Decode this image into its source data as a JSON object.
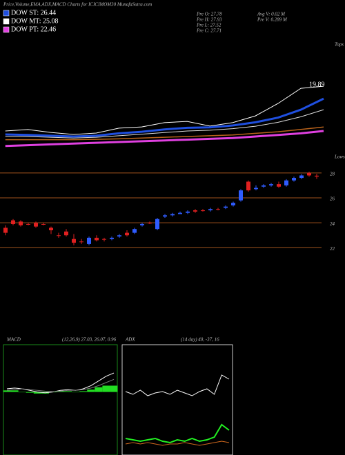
{
  "header": {
    "title": "Price,Volume,EMA,ADX,MACD Charts for ICICIMOM30 MunafaSutra.com",
    "legend": [
      {
        "label": "DOW ST: 26.44",
        "color": "#1f4fe0"
      },
      {
        "label": "DOW MT: 25.08",
        "color": "#ffffff"
      },
      {
        "label": "DOW PT: 22.46",
        "color": "#e040e0"
      }
    ],
    "stats": [
      "Pre  O: 27.78",
      "Pre  H: 27.93",
      "Pre  L: 27.52",
      "Pre  C: 27.71",
      "Avg V: 0.02  M",
      "Pre  V: 0.289 M"
    ]
  },
  "chart_data": [
    {
      "type": "line",
      "annotations": [
        "Tops",
        "Lows",
        "19.89"
      ],
      "x": [
        0,
        3,
        6,
        9,
        12,
        15,
        18,
        21,
        24,
        27,
        30,
        33,
        36,
        39,
        42
      ],
      "xlim": [
        -0.7,
        43
      ],
      "ylim": [
        23,
        30
      ],
      "series": [
        {
          "color": "#ffffff",
          "width": 1,
          "values": [
            24.75,
            24.84,
            24.66,
            24.53,
            24.62,
            24.93,
            25.01,
            25.28,
            25.36,
            25.06,
            25.28,
            25.71,
            26.5,
            27.46,
            27.59
          ]
        },
        {
          "color": "#1f4fe0",
          "width": 3,
          "values": [
            24.53,
            24.5,
            24.45,
            24.4,
            24.45,
            24.6,
            24.7,
            24.85,
            24.95,
            24.98,
            25.1,
            25.3,
            25.6,
            26.1,
            26.8
          ]
        },
        {
          "color": "#dddddd",
          "width": 1,
          "values": [
            24.4,
            24.4,
            24.35,
            24.3,
            24.35,
            24.45,
            24.55,
            24.65,
            24.75,
            24.8,
            24.9,
            25.05,
            25.3,
            25.65,
            26.1
          ]
        },
        {
          "color": "#b8621b",
          "width": 1.5,
          "values": [
            24.2,
            24.2,
            24.2,
            24.2,
            24.22,
            24.25,
            24.3,
            24.35,
            24.4,
            24.45,
            24.5,
            24.6,
            24.7,
            24.85,
            25.0
          ]
        },
        {
          "color": "#e040e0",
          "width": 3,
          "values": [
            23.8,
            23.85,
            23.9,
            23.95,
            24.0,
            24.05,
            24.1,
            24.15,
            24.2,
            24.25,
            24.3,
            24.4,
            24.5,
            24.6,
            24.75
          ]
        }
      ]
    },
    {
      "type": "candlestick",
      "ylim": [
        21.3,
        28.6
      ],
      "yticks": [
        22,
        24,
        26,
        28
      ],
      "grid": true,
      "grid_color": "#a0521d",
      "up_color": "#2f5cff",
      "down_color": "#e02020",
      "open": [
        23.6,
        24.2,
        24.1,
        23.9,
        24.0,
        23.9,
        23.6,
        23.0,
        23.3,
        22.7,
        22.5,
        22.3,
        22.8,
        22.7,
        22.7,
        22.9,
        23.2,
        23.2,
        23.8,
        24.0,
        23.5,
        24.5,
        24.6,
        24.7,
        24.8,
        25.0,
        25.0,
        25.0,
        25.1,
        25.2,
        25.4,
        25.8,
        27.3,
        26.7,
        26.9,
        27.0,
        27.1,
        27.0,
        27.4,
        27.6,
        28.0,
        27.78
      ],
      "high": [
        23.8,
        24.3,
        24.2,
        24.0,
        24.1,
        24.0,
        23.7,
        23.2,
        23.5,
        23.1,
        22.7,
        22.9,
        23.0,
        22.8,
        22.9,
        23.1,
        23.4,
        23.6,
        24.0,
        24.1,
        24.4,
        24.7,
        24.8,
        24.9,
        25.0,
        25.1,
        25.1,
        25.2,
        25.2,
        25.4,
        25.7,
        26.7,
        27.4,
        27.0,
        27.1,
        27.2,
        27.3,
        27.5,
        27.7,
        27.9,
        28.1,
        27.93
      ],
      "low": [
        23.0,
        23.8,
        23.7,
        23.8,
        23.6,
        23.8,
        23.1,
        22.8,
        22.9,
        22.2,
        22.3,
        22.2,
        22.5,
        22.5,
        22.6,
        22.8,
        22.9,
        23.1,
        23.7,
        23.9,
        23.4,
        24.4,
        24.5,
        24.7,
        24.7,
        24.8,
        24.9,
        24.9,
        25.0,
        25.1,
        25.3,
        25.7,
        26.5,
        26.6,
        26.8,
        26.9,
        26.8,
        26.9,
        27.3,
        27.5,
        27.7,
        27.52
      ],
      "close": [
        23.2,
        23.9,
        23.8,
        23.9,
        23.7,
        23.9,
        23.4,
        23.0,
        23.0,
        22.4,
        22.5,
        22.8,
        22.6,
        22.7,
        22.8,
        23.0,
        23.0,
        23.5,
        23.9,
        24.0,
        24.3,
        24.6,
        24.7,
        24.8,
        24.9,
        24.9,
        25.0,
        25.1,
        25.1,
        25.3,
        25.6,
        26.6,
        26.6,
        26.8,
        27.0,
        27.1,
        26.9,
        27.4,
        27.6,
        27.8,
        27.8,
        27.71
      ]
    },
    {
      "type": "macd",
      "title": "MACD",
      "subtitle": "(12,26,9) 27.03, 26.07, 0.96",
      "ylim": [
        -4,
        3
      ],
      "histogram": {
        "color": "#22dd22",
        "values": [
          0.1,
          0.1,
          0,
          -0.05,
          -0.1,
          -0.1,
          -0.02,
          0.05,
          0.05,
          0,
          0.05,
          0.15,
          0.3,
          0.4,
          0.4
        ]
      },
      "series": [
        {
          "color": "#ffffff",
          "values": [
            0.2,
            0.25,
            0.2,
            0.1,
            0.0,
            -0.05,
            0,
            0.1,
            0.15,
            0.1,
            0.2,
            0.4,
            0.7,
            1.0,
            1.2
          ]
        },
        {
          "color": "#777777",
          "values": [
            0.1,
            0.15,
            0.2,
            0.15,
            0.1,
            0.05,
            0.02,
            0.05,
            0.1,
            0.1,
            0.15,
            0.25,
            0.4,
            0.6,
            0.8
          ]
        }
      ]
    },
    {
      "type": "line",
      "title": "ADX",
      "subtitle": "(14 day) 40, -37, 16",
      "ylim": [
        0,
        80
      ],
      "series": [
        {
          "color": "#ffffff",
          "width": 1,
          "values": [
            46,
            44,
            47,
            43,
            45,
            46,
            44,
            47,
            45,
            43,
            46,
            48,
            44,
            58,
            55
          ]
        },
        {
          "color": "#22ee22",
          "width": 2,
          "values": [
            12,
            11,
            10,
            11,
            12,
            10,
            9,
            11,
            10,
            12,
            10,
            11,
            13,
            22,
            18
          ]
        },
        {
          "color": "#d2691e",
          "width": 1,
          "values": [
            8,
            9,
            8,
            9,
            8,
            7,
            8,
            8,
            9,
            8,
            7,
            8,
            9,
            10,
            9
          ]
        }
      ]
    }
  ]
}
